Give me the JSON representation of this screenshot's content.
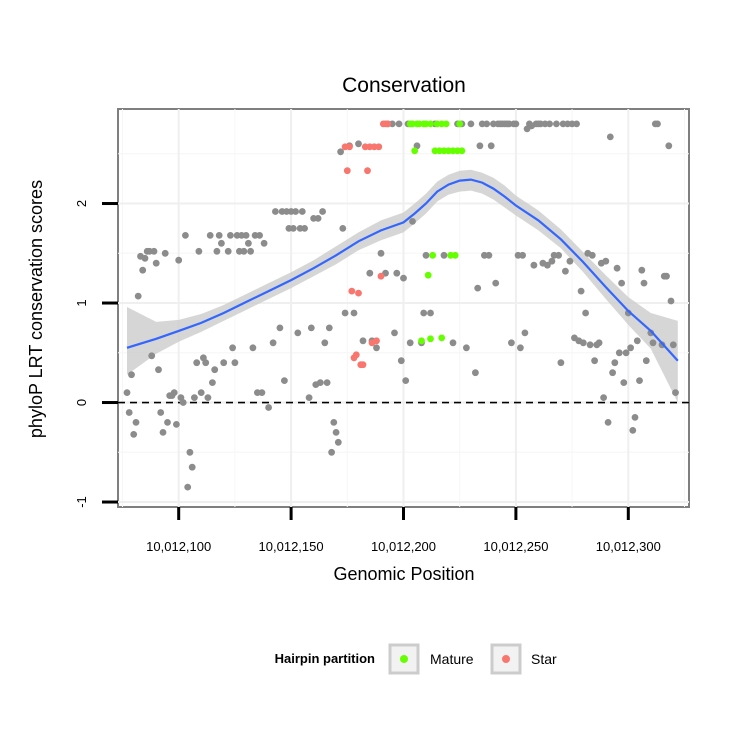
{
  "chart_data": {
    "type": "scatter",
    "title": "Conservation",
    "xlabel": "Genomic Position",
    "ylabel": "phyloP LRT conservation scores",
    "xlim": [
      10012073,
      10012327
    ],
    "ylim": [
      -1.05,
      2.95
    ],
    "x_ticks": [
      10012100,
      10012150,
      10012200,
      10012250,
      10012300
    ],
    "x_tick_labels": [
      "10,012,100",
      "10,012,150",
      "10,012,200",
      "10,012,250",
      "10,012,300"
    ],
    "y_ticks": [
      -1,
      0,
      1,
      2
    ],
    "y_tick_labels": [
      "-1",
      "0",
      "1",
      "2"
    ],
    "reference_line": {
      "y": 0,
      "style": "dashed"
    },
    "grid": true,
    "legend": {
      "title": "Hairpin partition",
      "position": "bottom",
      "entries": [
        {
          "label": "Mature",
          "color": "#66ff00"
        },
        {
          "label": "Star",
          "color": "#f8766d"
        }
      ]
    },
    "colors": {
      "other": "#8c8c8c",
      "Mature": "#66ff00",
      "Star": "#f8766d",
      "smooth": "#3366ff",
      "band": "#cccccc"
    },
    "series": [
      {
        "name": "Other",
        "color": "#8c8c8c",
        "points": [
          [
            10012077,
            0.1
          ],
          [
            10012078,
            -0.1
          ],
          [
            10012079,
            0.28
          ],
          [
            10012080,
            -0.32
          ],
          [
            10012081,
            -0.2
          ],
          [
            10012082,
            1.07
          ],
          [
            10012083,
            1.47
          ],
          [
            10012084,
            1.33
          ],
          [
            10012085,
            1.45
          ],
          [
            10012086,
            1.52
          ],
          [
            10012087,
            1.52
          ],
          [
            10012088,
            0.47
          ],
          [
            10012089,
            1.52
          ],
          [
            10012090,
            1.4
          ],
          [
            10012091,
            0.33
          ],
          [
            10012092,
            -0.1
          ],
          [
            10012093,
            -0.3
          ],
          [
            10012094,
            1.5
          ],
          [
            10012095,
            -0.2
          ],
          [
            10012096,
            0.07
          ],
          [
            10012097,
            0.07
          ],
          [
            10012098,
            0.1
          ],
          [
            10012099,
            -0.22
          ],
          [
            10012100,
            1.43
          ],
          [
            10012101,
            0.05
          ],
          [
            10012102,
            0
          ],
          [
            10012103,
            1.68
          ],
          [
            10012104,
            -0.85
          ],
          [
            10012105,
            -0.5
          ],
          [
            10012106,
            -0.65
          ],
          [
            10012107,
            0.05
          ],
          [
            10012108,
            0.4
          ],
          [
            10012109,
            1.52
          ],
          [
            10012110,
            0.1
          ],
          [
            10012111,
            0.45
          ],
          [
            10012112,
            0.4
          ],
          [
            10012113,
            0.05
          ],
          [
            10012114,
            1.68
          ],
          [
            10012115,
            0.2
          ],
          [
            10012116,
            0.33
          ],
          [
            10012117,
            1.52
          ],
          [
            10012118,
            1.68
          ],
          [
            10012119,
            1.6
          ],
          [
            10012120,
            0.4
          ],
          [
            10012122,
            1.52
          ],
          [
            10012123,
            1.68
          ],
          [
            10012124,
            0.55
          ],
          [
            10012125,
            0.4
          ],
          [
            10012126,
            1.68
          ],
          [
            10012127,
            1.52
          ],
          [
            10012128,
            1.68
          ],
          [
            10012129,
            1.52
          ],
          [
            10012130,
            1.68
          ],
          [
            10012131,
            1.6
          ],
          [
            10012132,
            1.52
          ],
          [
            10012133,
            0.55
          ],
          [
            10012134,
            1.68
          ],
          [
            10012135,
            0.1
          ],
          [
            10012136,
            1.68
          ],
          [
            10012137,
            0.1
          ],
          [
            10012138,
            1.6
          ],
          [
            10012140,
            -0.05
          ],
          [
            10012142,
            0.6
          ],
          [
            10012143,
            1.92
          ],
          [
            10012145,
            0.75
          ],
          [
            10012146,
            1.92
          ],
          [
            10012147,
            0.22
          ],
          [
            10012148,
            1.92
          ],
          [
            10012149,
            1.75
          ],
          [
            10012150,
            1.92
          ],
          [
            10012151,
            1.75
          ],
          [
            10012152,
            1.92
          ],
          [
            10012153,
            0.7
          ],
          [
            10012154,
            1.75
          ],
          [
            10012155,
            1.92
          ],
          [
            10012156,
            1.75
          ],
          [
            10012158,
            0.05
          ],
          [
            10012159,
            0.75
          ],
          [
            10012160,
            1.85
          ],
          [
            10012161,
            0.18
          ],
          [
            10012162,
            1.85
          ],
          [
            10012163,
            0.2
          ],
          [
            10012164,
            1.92
          ],
          [
            10012165,
            0.6
          ],
          [
            10012166,
            0.2
          ],
          [
            10012167,
            0.75
          ],
          [
            10012168,
            -0.5
          ],
          [
            10012169,
            -0.2
          ],
          [
            10012170,
            -0.3
          ],
          [
            10012171,
            -0.4
          ],
          [
            10012172,
            2.52
          ],
          [
            10012173,
            1.75
          ],
          [
            10012174,
            0.9
          ],
          [
            10012176,
            2.58
          ],
          [
            10012178,
            0.9
          ],
          [
            10012180,
            2.6
          ],
          [
            10012182,
            0.62
          ],
          [
            10012185,
            1.3
          ],
          [
            10012186,
            0.62
          ],
          [
            10012188,
            0.55
          ],
          [
            10012190,
            1.5
          ],
          [
            10012192,
            1.3
          ],
          [
            10012193,
            2.8
          ],
          [
            10012195,
            2.8
          ],
          [
            10012196,
            0.7
          ],
          [
            10012197,
            1.3
          ],
          [
            10012198,
            2.8
          ],
          [
            10012199,
            0.42
          ],
          [
            10012200,
            1.25
          ],
          [
            10012201,
            0.22
          ],
          [
            10012202,
            2.8
          ],
          [
            10012203,
            0.6
          ],
          [
            10012204,
            1.82
          ],
          [
            10012206,
            2.58
          ],
          [
            10012208,
            0.6
          ],
          [
            10012209,
            0.9
          ],
          [
            10012210,
            1.48
          ],
          [
            10012212,
            0.9
          ],
          [
            10012214,
            2.8
          ],
          [
            10012218,
            1.48
          ],
          [
            10012222,
            0.6
          ],
          [
            10012224,
            2.8
          ],
          [
            10012226,
            2.8
          ],
          [
            10012228,
            0.55
          ],
          [
            10012230,
            2.8
          ],
          [
            10012232,
            0.3
          ],
          [
            10012233,
            1.15
          ],
          [
            10012234,
            2.58
          ],
          [
            10012235,
            2.8
          ],
          [
            10012236,
            1.48
          ],
          [
            10012237,
            2.8
          ],
          [
            10012238,
            1.48
          ],
          [
            10012239,
            2.58
          ],
          [
            10012240,
            2.8
          ],
          [
            10012241,
            1.2
          ],
          [
            10012242,
            2.8
          ],
          [
            10012243,
            2.8
          ],
          [
            10012244,
            2.8
          ],
          [
            10012245,
            2.8
          ],
          [
            10012246,
            2.8
          ],
          [
            10012247,
            2.8
          ],
          [
            10012248,
            0.6
          ],
          [
            10012249,
            2.8
          ],
          [
            10012250,
            2.8
          ],
          [
            10012251,
            1.48
          ],
          [
            10012252,
            0.55
          ],
          [
            10012253,
            1.48
          ],
          [
            10012254,
            0.7
          ],
          [
            10012255,
            2.75
          ],
          [
            10012256,
            2.8
          ],
          [
            10012257,
            2.78
          ],
          [
            10012258,
            1.38
          ],
          [
            10012259,
            2.8
          ],
          [
            10012260,
            2.8
          ],
          [
            10012261,
            2.8
          ],
          [
            10012262,
            1.4
          ],
          [
            10012263,
            2.8
          ],
          [
            10012264,
            1.38
          ],
          [
            10012265,
            2.8
          ],
          [
            10012266,
            1.42
          ],
          [
            10012267,
            1.48
          ],
          [
            10012268,
            2.8
          ],
          [
            10012269,
            1.48
          ],
          [
            10012270,
            0.4
          ],
          [
            10012271,
            2.8
          ],
          [
            10012272,
            1.32
          ],
          [
            10012273,
            2.8
          ],
          [
            10012274,
            1.42
          ],
          [
            10012275,
            2.8
          ],
          [
            10012276,
            0.65
          ],
          [
            10012277,
            2.8
          ],
          [
            10012278,
            0.62
          ],
          [
            10012279,
            1.12
          ],
          [
            10012280,
            0.6
          ],
          [
            10012281,
            0.9
          ],
          [
            10012282,
            1.5
          ],
          [
            10012283,
            0.58
          ],
          [
            10012284,
            1.48
          ],
          [
            10012285,
            0.42
          ],
          [
            10012286,
            0.58
          ],
          [
            10012287,
            0.6
          ],
          [
            10012288,
            1.4
          ],
          [
            10012289,
            0.05
          ],
          [
            10012290,
            1.42
          ],
          [
            10012291,
            -0.2
          ],
          [
            10012292,
            2.67
          ],
          [
            10012293,
            0.3
          ],
          [
            10012294,
            0.4
          ],
          [
            10012295,
            1.35
          ],
          [
            10012296,
            0.5
          ],
          [
            10012297,
            1.2
          ],
          [
            10012298,
            0.2
          ],
          [
            10012299,
            0.5
          ],
          [
            10012300,
            0.9
          ],
          [
            10012301,
            0.55
          ],
          [
            10012302,
            -0.28
          ],
          [
            10012303,
            -0.15
          ],
          [
            10012304,
            0.62
          ],
          [
            10012305,
            0.22
          ],
          [
            10012306,
            1.33
          ],
          [
            10012307,
            1.2
          ],
          [
            10012308,
            0.42
          ],
          [
            10012310,
            0.7
          ],
          [
            10012311,
            0.6
          ],
          [
            10012312,
            2.8
          ],
          [
            10012313,
            2.8
          ],
          [
            10012315,
            0.58
          ],
          [
            10012316,
            1.27
          ],
          [
            10012317,
            1.27
          ],
          [
            10012318,
            2.58
          ],
          [
            10012319,
            1.02
          ],
          [
            10012320,
            0.58
          ],
          [
            10012321,
            0.1
          ]
        ]
      },
      {
        "name": "Mature",
        "color": "#66ff00",
        "points": [
          [
            10012203,
            2.8
          ],
          [
            10012204,
            2.8
          ],
          [
            10012205,
            2.53
          ],
          [
            10012206,
            2.8
          ],
          [
            10012207,
            2.8
          ],
          [
            10012208,
            0.62
          ],
          [
            10012209,
            2.8
          ],
          [
            10012210,
            2.8
          ],
          [
            10012211,
            1.28
          ],
          [
            10012212,
            2.8
          ],
          [
            10012213,
            1.48
          ],
          [
            10012214,
            2.53
          ],
          [
            10012215,
            2.8
          ],
          [
            10012216,
            2.53
          ],
          [
            10012217,
            2.8
          ],
          [
            10012218,
            2.53
          ],
          [
            10012219,
            2.8
          ],
          [
            10012220,
            2.53
          ],
          [
            10012221,
            1.48
          ],
          [
            10012222,
            2.53
          ],
          [
            10012223,
            1.48
          ],
          [
            10012224,
            2.53
          ],
          [
            10012225,
            2.8
          ],
          [
            10012226,
            2.53
          ],
          [
            10012212,
            0.64
          ],
          [
            10012217,
            0.65
          ]
        ]
      },
      {
        "name": "Star",
        "color": "#f8766d",
        "points": [
          [
            10012174,
            2.57
          ],
          [
            10012175,
            2.33
          ],
          [
            10012176,
            2.57
          ],
          [
            10012177,
            1.12
          ],
          [
            10012178,
            0.45
          ],
          [
            10012179,
            0.48
          ],
          [
            10012180,
            1.1
          ],
          [
            10012181,
            0.38
          ],
          [
            10012182,
            0.38
          ],
          [
            10012183,
            2.57
          ],
          [
            10012184,
            2.33
          ],
          [
            10012185,
            2.57
          ],
          [
            10012186,
            0.6
          ],
          [
            10012187,
            2.57
          ],
          [
            10012188,
            0.62
          ],
          [
            10012189,
            2.57
          ],
          [
            10012190,
            1.27
          ],
          [
            10012191,
            2.8
          ],
          [
            10012192,
            2.8
          ],
          [
            10012193,
            2.8
          ]
        ]
      }
    ],
    "smooth": {
      "x": [
        10012077,
        10012090,
        10012100,
        10012110,
        10012120,
        10012130,
        10012140,
        10012150,
        10012160,
        10012170,
        10012180,
        10012190,
        10012200,
        10012205,
        10012210,
        10012215,
        10012220,
        10012225,
        10012230,
        10012235,
        10012240,
        10012245,
        10012250,
        10012260,
        10012270,
        10012280,
        10012290,
        10012300,
        10012310,
        10012322
      ],
      "y": [
        0.55,
        0.64,
        0.72,
        0.8,
        0.9,
        1.01,
        1.12,
        1.23,
        1.35,
        1.48,
        1.62,
        1.73,
        1.81,
        1.9,
        2.0,
        2.12,
        2.19,
        2.23,
        2.24,
        2.21,
        2.15,
        2.07,
        1.98,
        1.83,
        1.64,
        1.41,
        1.16,
        0.92,
        0.72,
        0.42
      ],
      "lower": [
        0.28,
        0.49,
        0.61,
        0.71,
        0.82,
        0.93,
        1.04,
        1.15,
        1.27,
        1.39,
        1.53,
        1.63,
        1.71,
        1.8,
        1.9,
        2.02,
        2.09,
        2.12,
        2.13,
        2.1,
        2.04,
        1.96,
        1.88,
        1.73,
        1.55,
        1.31,
        1.04,
        0.78,
        0.54,
        0.0
      ],
      "upper": [
        0.96,
        0.81,
        0.83,
        0.89,
        0.98,
        1.09,
        1.2,
        1.31,
        1.43,
        1.57,
        1.71,
        1.83,
        1.91,
        2.0,
        2.1,
        2.22,
        2.29,
        2.33,
        2.34,
        2.31,
        2.26,
        2.18,
        2.08,
        1.93,
        1.74,
        1.51,
        1.28,
        1.06,
        0.9,
        0.82
      ]
    }
  }
}
